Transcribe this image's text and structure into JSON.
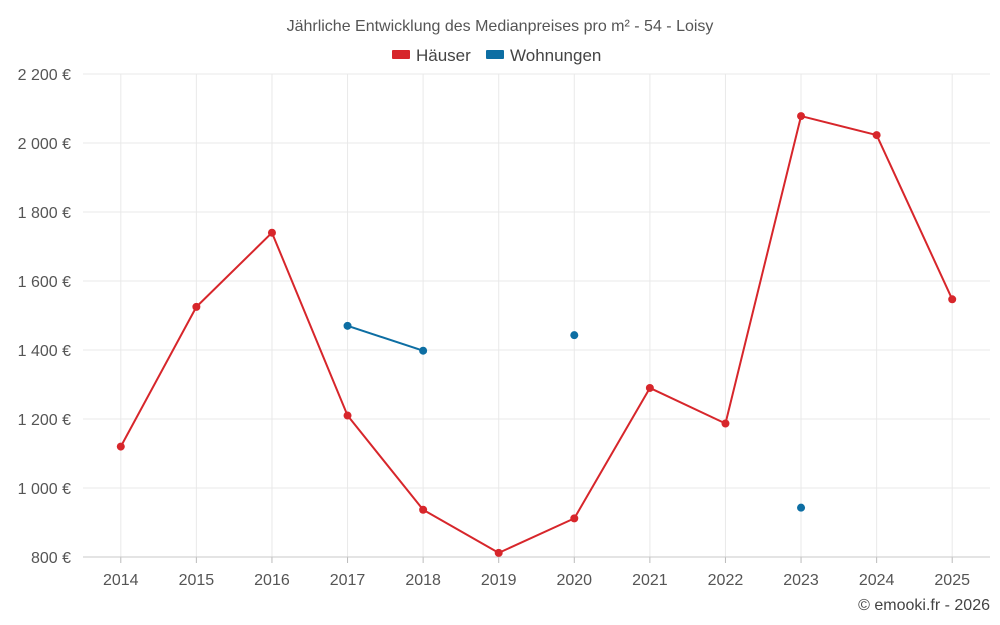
{
  "chart_data": {
    "type": "line",
    "title": "Jährliche Entwicklung des Medianpreises pro m² - 54 - Loisy",
    "categories": [
      "2014",
      "2015",
      "2016",
      "2017",
      "2018",
      "2019",
      "2020",
      "2021",
      "2022",
      "2023",
      "2024",
      "2025"
    ],
    "series": [
      {
        "name": "Häuser",
        "color": "#d7262b",
        "values": [
          1120,
          1525,
          1740,
          1210,
          937,
          812,
          912,
          1290,
          1187,
          2078,
          2023,
          1547
        ]
      },
      {
        "name": "Wohnungen",
        "color": "#0d6ea3",
        "values": [
          null,
          null,
          null,
          1470,
          1398,
          null,
          1443,
          null,
          null,
          943,
          null,
          null
        ]
      }
    ],
    "yticks": [
      800,
      1000,
      1200,
      1400,
      1600,
      1800,
      2000,
      2200
    ],
    "ytick_labels": [
      "800 €",
      "1 000 €",
      "1 200 €",
      "1 400 €",
      "1 600 €",
      "1 800 €",
      "2 000 €",
      "2 200 €"
    ],
    "ylim": [
      800,
      2200
    ],
    "xlabel": "",
    "ylabel": "",
    "grid": true,
    "legend_position": "top-center"
  },
  "credit": "© emooki.fr - 2026"
}
